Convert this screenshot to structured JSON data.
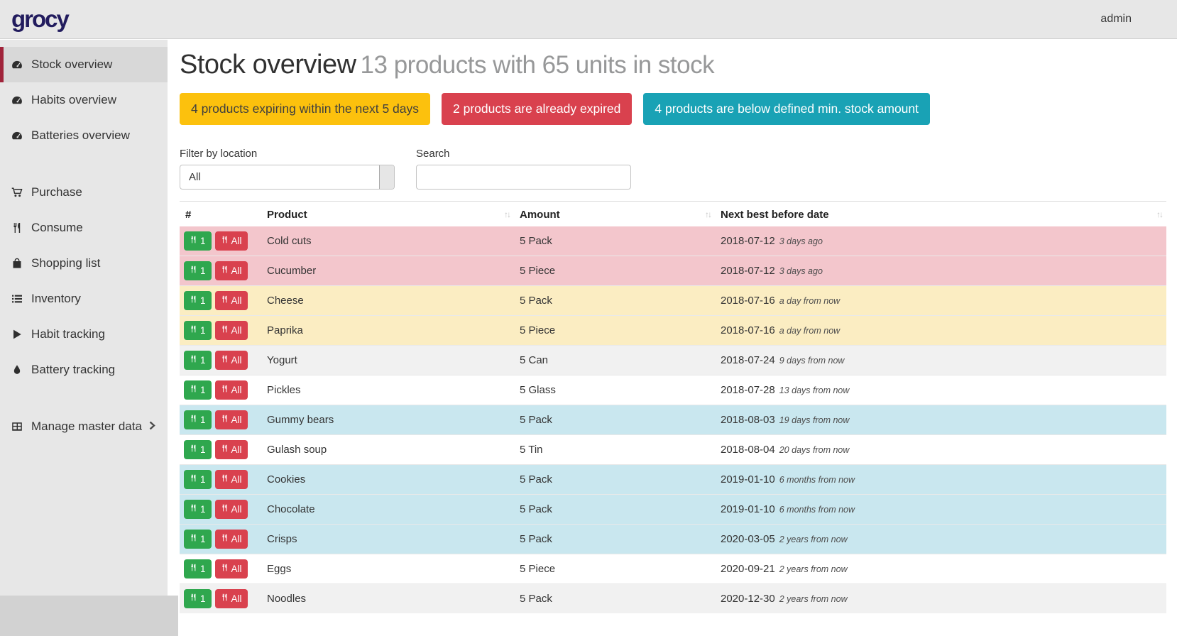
{
  "header": {
    "logo_text": "grocy",
    "user_menu": {
      "icon": "person-icon",
      "label": "admin",
      "chevron": "chevron-right-icon"
    },
    "config_menu": {
      "icon": "wrench-icon",
      "chevron": "chevron-right-icon"
    }
  },
  "sidebar": {
    "items": [
      {
        "icon": "gauge-icon",
        "label": "Stock overview",
        "active": true,
        "gap": false,
        "chevron": false
      },
      {
        "icon": "gauge-icon",
        "label": "Habits overview",
        "active": false,
        "gap": false,
        "chevron": false
      },
      {
        "icon": "gauge-icon",
        "label": "Batteries overview",
        "active": false,
        "gap": false,
        "chevron": false
      },
      {
        "icon": "cart-icon",
        "label": "Purchase",
        "active": false,
        "gap": true,
        "chevron": false
      },
      {
        "icon": "utensils-icon",
        "label": "Consume",
        "active": false,
        "gap": false,
        "chevron": false
      },
      {
        "icon": "bag-icon",
        "label": "Shopping list",
        "active": false,
        "gap": false,
        "chevron": false
      },
      {
        "icon": "list-icon",
        "label": "Inventory",
        "active": false,
        "gap": false,
        "chevron": false
      },
      {
        "icon": "play-icon",
        "label": "Habit tracking",
        "active": false,
        "gap": false,
        "chevron": false
      },
      {
        "icon": "drop-icon",
        "label": "Battery tracking",
        "active": false,
        "gap": false,
        "chevron": false
      },
      {
        "icon": "table-icon",
        "label": "Manage master data",
        "active": false,
        "gap": true,
        "chevron": true
      }
    ],
    "collapse_icon": "chevron-left-icon"
  },
  "page": {
    "title": "Stock overview",
    "subtitle": "13 products with 65 units in stock"
  },
  "alerts": [
    {
      "text": "4 products expiring within the next 5 days",
      "bg": "#fcc10d",
      "fg": "#3f3f3f"
    },
    {
      "text": "2 products are already expired",
      "bg": "#d9414e",
      "fg": "#ffffff"
    },
    {
      "text": "4 products are below defined min. stock amount",
      "bg": "#19a2b5",
      "fg": "#ffffff"
    }
  ],
  "filters": {
    "location_label": "Filter by location",
    "location_icon": "filter-icon",
    "location_value": "All",
    "search_label": "Search",
    "search_icon": "search-icon",
    "search_value": "",
    "search_placeholder": ""
  },
  "table": {
    "columns": [
      {
        "label": "#",
        "sortable": false
      },
      {
        "label": "Product",
        "sortable": true
      },
      {
        "label": "Amount",
        "sortable": true
      },
      {
        "label": "Next best before date",
        "sortable": true
      }
    ],
    "sort_glyph": "↑↓",
    "consume_one_label": "1",
    "consume_all_label": "All",
    "consume_icon": "utensils-icon",
    "rows": [
      {
        "product": "Cold cuts",
        "amount": "5 Pack",
        "date": "2018-07-12",
        "relative": "3 days ago",
        "status": "expired"
      },
      {
        "product": "Cucumber",
        "amount": "5 Piece",
        "date": "2018-07-12",
        "relative": "3 days ago",
        "status": "expired"
      },
      {
        "product": "Cheese",
        "amount": "5 Pack",
        "date": "2018-07-16",
        "relative": "a day from now",
        "status": "expiring"
      },
      {
        "product": "Paprika",
        "amount": "5 Piece",
        "date": "2018-07-16",
        "relative": "a day from now",
        "status": "expiring"
      },
      {
        "product": "Yogurt",
        "amount": "5 Can",
        "date": "2018-07-24",
        "relative": "9 days from now",
        "status": "none"
      },
      {
        "product": "Pickles",
        "amount": "5 Glass",
        "date": "2018-07-28",
        "relative": "13 days from now",
        "status": "none"
      },
      {
        "product": "Gummy bears",
        "amount": "5 Pack",
        "date": "2018-08-03",
        "relative": "19 days from now",
        "status": "belowmin"
      },
      {
        "product": "Gulash soup",
        "amount": "5 Tin",
        "date": "2018-08-04",
        "relative": "20 days from now",
        "status": "none"
      },
      {
        "product": "Cookies",
        "amount": "5 Pack",
        "date": "2019-01-10",
        "relative": "6 months from now",
        "status": "belowmin"
      },
      {
        "product": "Chocolate",
        "amount": "5 Pack",
        "date": "2019-01-10",
        "relative": "6 months from now",
        "status": "belowmin"
      },
      {
        "product": "Crisps",
        "amount": "5 Pack",
        "date": "2020-03-05",
        "relative": "2 years from now",
        "status": "belowmin"
      },
      {
        "product": "Eggs",
        "amount": "5 Piece",
        "date": "2020-09-21",
        "relative": "2 years from now",
        "status": "none"
      },
      {
        "product": "Noodles",
        "amount": "5 Pack",
        "date": "2020-12-30",
        "relative": "2 years from now",
        "status": "none"
      }
    ]
  },
  "colors": {
    "sidebar_accent_red": "#a0233a",
    "consume_one_green": "#2fa74e",
    "consume_all_red": "#d9414e",
    "row_expired": "#f3c6cc",
    "row_expiring": "#fbedc2",
    "row_belowmin": "#c9e7ef"
  }
}
